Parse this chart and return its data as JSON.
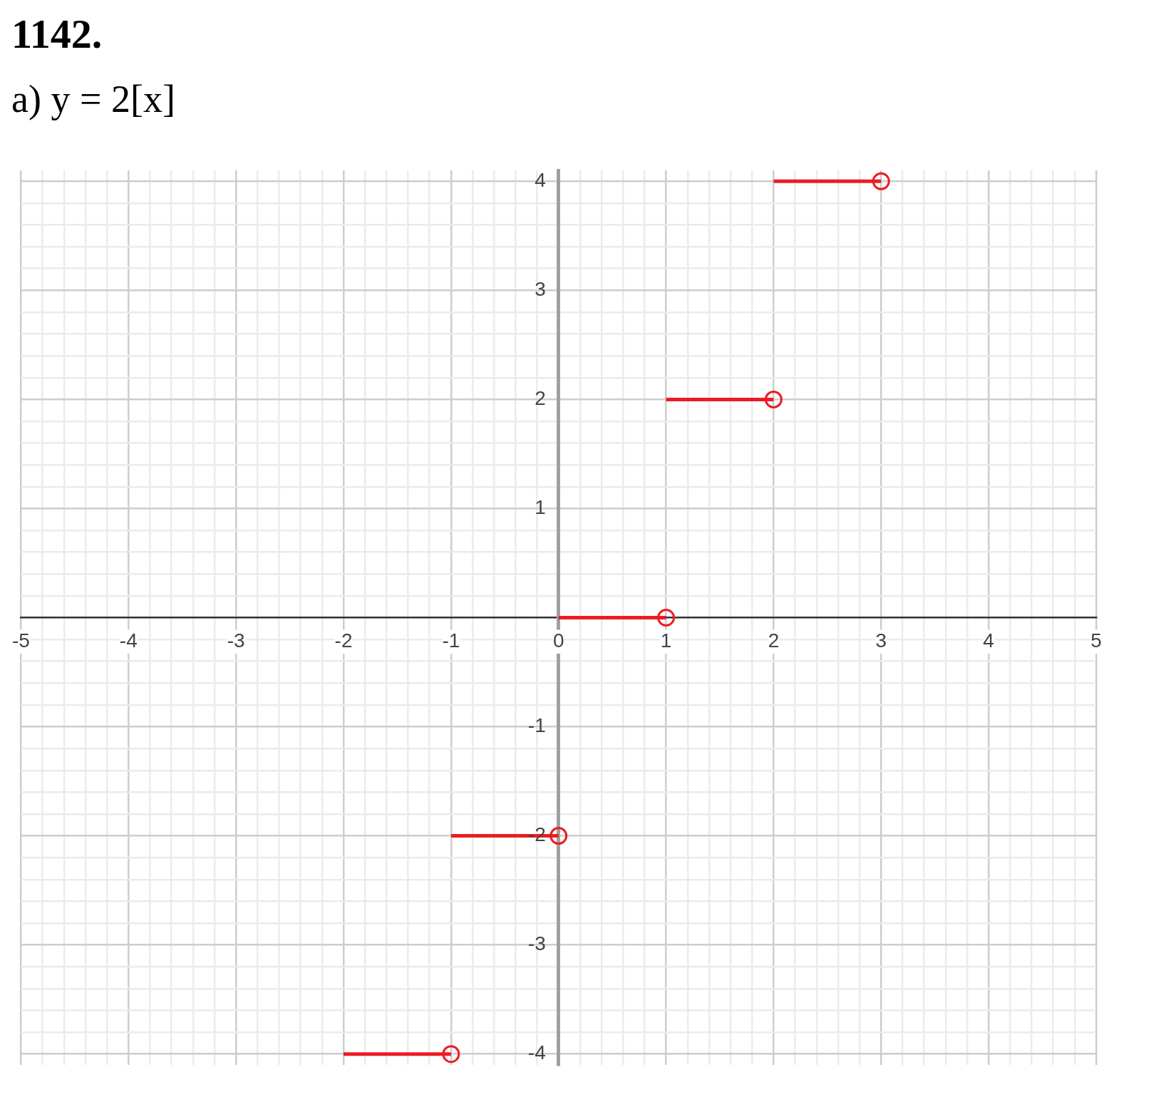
{
  "chart_data": {
    "type": "line",
    "title": "1142.",
    "subtitle": "а) y = 2[x]",
    "xlim": [
      -5,
      5
    ],
    "ylim": [
      -4.1,
      4.1
    ],
    "xticks": [
      -5,
      {
        "value": -4.8,
        "label": null
      },
      {
        "value": -4.6,
        "label": null
      },
      {
        "value": -4.4,
        "label": null
      },
      {
        "value": -4.2,
        "label": null
      },
      -4,
      {
        "value": -3.8,
        "label": null
      },
      {
        "value": -3.6,
        "label": null
      },
      {
        "value": -3.4,
        "label": null
      },
      {
        "value": -3.2,
        "label": null
      },
      -3,
      {
        "value": -2.8,
        "label": null
      },
      {
        "value": -2.6,
        "label": null
      },
      {
        "value": -2.4,
        "label": null
      },
      {
        "value": -2.2,
        "label": null
      },
      -2,
      {
        "value": -1.8,
        "label": null
      },
      {
        "value": -1.6,
        "label": null
      },
      {
        "value": -1.4,
        "label": null
      },
      {
        "value": -1.2,
        "label": null
      },
      -1,
      {
        "value": -0.8,
        "label": null
      },
      {
        "value": -0.6,
        "label": null
      },
      {
        "value": -0.4,
        "label": null
      },
      {
        "value": -0.2,
        "label": null
      },
      0,
      {
        "value": 0.2,
        "label": null
      },
      {
        "value": 0.4,
        "label": null
      },
      {
        "value": 0.6,
        "label": null
      },
      {
        "value": 0.8,
        "label": null
      },
      1,
      {
        "value": 1.2,
        "label": null
      },
      {
        "value": 1.4,
        "label": null
      },
      {
        "value": 1.6,
        "label": null
      },
      {
        "value": 1.8,
        "label": null
      },
      2,
      {
        "value": 2.2,
        "label": null
      },
      {
        "value": 2.4,
        "label": null
      },
      {
        "value": 2.6,
        "label": null
      },
      {
        "value": 2.8,
        "label": null
      },
      3,
      {
        "value": 3.2,
        "label": null
      },
      {
        "value": 3.4,
        "label": null
      },
      {
        "value": 3.6,
        "label": null
      },
      {
        "value": 3.8,
        "label": null
      },
      4,
      {
        "value": 4.2,
        "label": null
      },
      {
        "value": 4.4,
        "label": null
      },
      {
        "value": 4.6,
        "label": null
      },
      {
        "value": 4.8,
        "label": null
      },
      5
    ],
    "yticks": [
      -4,
      {
        "value": -3.8,
        "label": null
      },
      {
        "value": -3.6,
        "label": null
      },
      {
        "value": -3.4,
        "label": null
      },
      {
        "value": -3.2,
        "label": null
      },
      -3,
      {
        "value": -2.8,
        "label": null
      },
      {
        "value": -2.6,
        "label": null
      },
      {
        "value": -2.4,
        "label": null
      },
      {
        "value": -2.2,
        "label": null
      },
      -2,
      {
        "value": -1.8,
        "label": null
      },
      {
        "value": -1.6,
        "label": null
      },
      {
        "value": -1.4,
        "label": null
      },
      {
        "value": -1.2,
        "label": null
      },
      -1,
      {
        "value": -0.8,
        "label": null
      },
      {
        "value": -0.6,
        "label": null
      },
      {
        "value": -0.4,
        "label": null
      },
      {
        "value": -0.2,
        "label": null
      },
      {
        "value": 0,
        "label": null
      },
      {
        "value": 0.2,
        "label": null
      },
      {
        "value": 0.4,
        "label": null
      },
      {
        "value": 0.6,
        "label": null
      },
      {
        "value": 0.8,
        "label": null
      },
      1,
      {
        "value": 1.2,
        "label": null
      },
      {
        "value": 1.4,
        "label": null
      },
      {
        "value": 1.6,
        "label": null
      },
      {
        "value": 1.8,
        "label": null
      },
      2,
      {
        "value": 2.2,
        "label": null
      },
      {
        "value": 2.4,
        "label": null
      },
      {
        "value": 2.6,
        "label": null
      },
      {
        "value": 2.8,
        "label": null
      },
      3,
      {
        "value": 3.2,
        "label": null
      },
      {
        "value": 3.4,
        "label": null
      },
      {
        "value": 3.6,
        "label": null
      },
      {
        "value": 3.8,
        "label": null
      },
      4
    ],
    "grid": true,
    "series": [
      {
        "type": "line",
        "color": "#ec1c24",
        "x": [
          -2,
          -1
        ],
        "values": [
          -4,
          -4
        ]
      },
      {
        "type": "line",
        "color": "#ec1c24",
        "x": [
          -1,
          0
        ],
        "values": [
          -2,
          -2
        ]
      },
      {
        "type": "line",
        "color": "#ec1c24",
        "x": [
          0,
          1
        ],
        "values": [
          0,
          0
        ]
      },
      {
        "type": "line",
        "color": "#ec1c24",
        "x": [
          1,
          2
        ],
        "values": [
          2,
          2
        ]
      },
      {
        "type": "line",
        "color": "#ec1c24",
        "x": [
          2,
          3
        ],
        "values": [
          4,
          4
        ]
      },
      {
        "type": "scatter",
        "color": "#ec1c24",
        "marker": "circle",
        "x": [
          -1,
          0,
          1,
          2,
          3
        ],
        "values": [
          -4,
          -2,
          0,
          2,
          4
        ]
      }
    ]
  }
}
